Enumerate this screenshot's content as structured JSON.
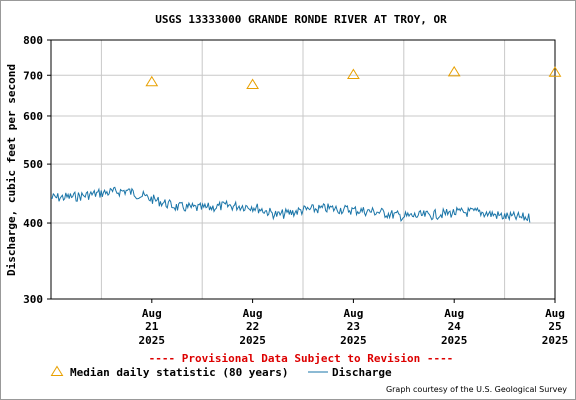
{
  "chart_data": {
    "type": "line",
    "title": "USGS 13333000 GRANDE RONDE RIVER AT TROY, OR",
    "ylabel": "Discharge, cubic feet per second",
    "y_scale": "log",
    "ylim": [
      300,
      800
    ],
    "y_ticks": [
      300,
      400,
      500,
      600,
      700,
      800
    ],
    "x_ticks": [
      {
        "date": "2025-08-21",
        "month": "Aug",
        "day": "21",
        "year": "2025"
      },
      {
        "date": "2025-08-22",
        "month": "Aug",
        "day": "22",
        "year": "2025"
      },
      {
        "date": "2025-08-23",
        "month": "Aug",
        "day": "23",
        "year": "2025"
      },
      {
        "date": "2025-08-24",
        "month": "Aug",
        "day": "24",
        "year": "2025"
      },
      {
        "date": "2025-08-25",
        "month": "Aug",
        "day": "25",
        "year": "2025"
      }
    ],
    "xlim": [
      "2025-08-20T12:00",
      "2025-08-25T12:00"
    ],
    "grid": true,
    "series": [
      {
        "name": "Median daily statistic (80 years)",
        "marker": "triangle",
        "color": "#e8a000",
        "x": [
          "2025-08-21",
          "2025-08-22",
          "2025-08-23",
          "2025-08-24",
          "2025-08-25"
        ],
        "values": [
          683,
          676,
          702,
          709,
          708
        ]
      },
      {
        "name": "Discharge",
        "color": "#1a75a8",
        "x": [
          "2025-08-20T12:00",
          "2025-08-20T18:00",
          "2025-08-21T00:00",
          "2025-08-21T06:00",
          "2025-08-21T12:00",
          "2025-08-21T18:00",
          "2025-08-22T00:00",
          "2025-08-22T06:00",
          "2025-08-22T12:00",
          "2025-08-22T18:00",
          "2025-08-23T00:00",
          "2025-08-23T06:00",
          "2025-08-23T12:00",
          "2025-08-23T18:00",
          "2025-08-24T00:00",
          "2025-08-24T06:00",
          "2025-08-24T12:00",
          "2025-08-24T18:00",
          "2025-08-25T00:00",
          "2025-08-25T06:00"
        ],
        "values": [
          440,
          442,
          448,
          452,
          438,
          425,
          423,
          427,
          426,
          412,
          420,
          423,
          420,
          417,
          410,
          412,
          416,
          417,
          410,
          408
        ]
      }
    ]
  },
  "notice": "---- Provisional Data Subject to Revision ----",
  "credit": "Graph courtesy of the U.S. Geological Survey",
  "colors": {
    "axis": "#000000",
    "grid": "#c8c8c8",
    "median": "#e8a000",
    "discharge": "#1a75a8",
    "notice": "#dd0000"
  }
}
